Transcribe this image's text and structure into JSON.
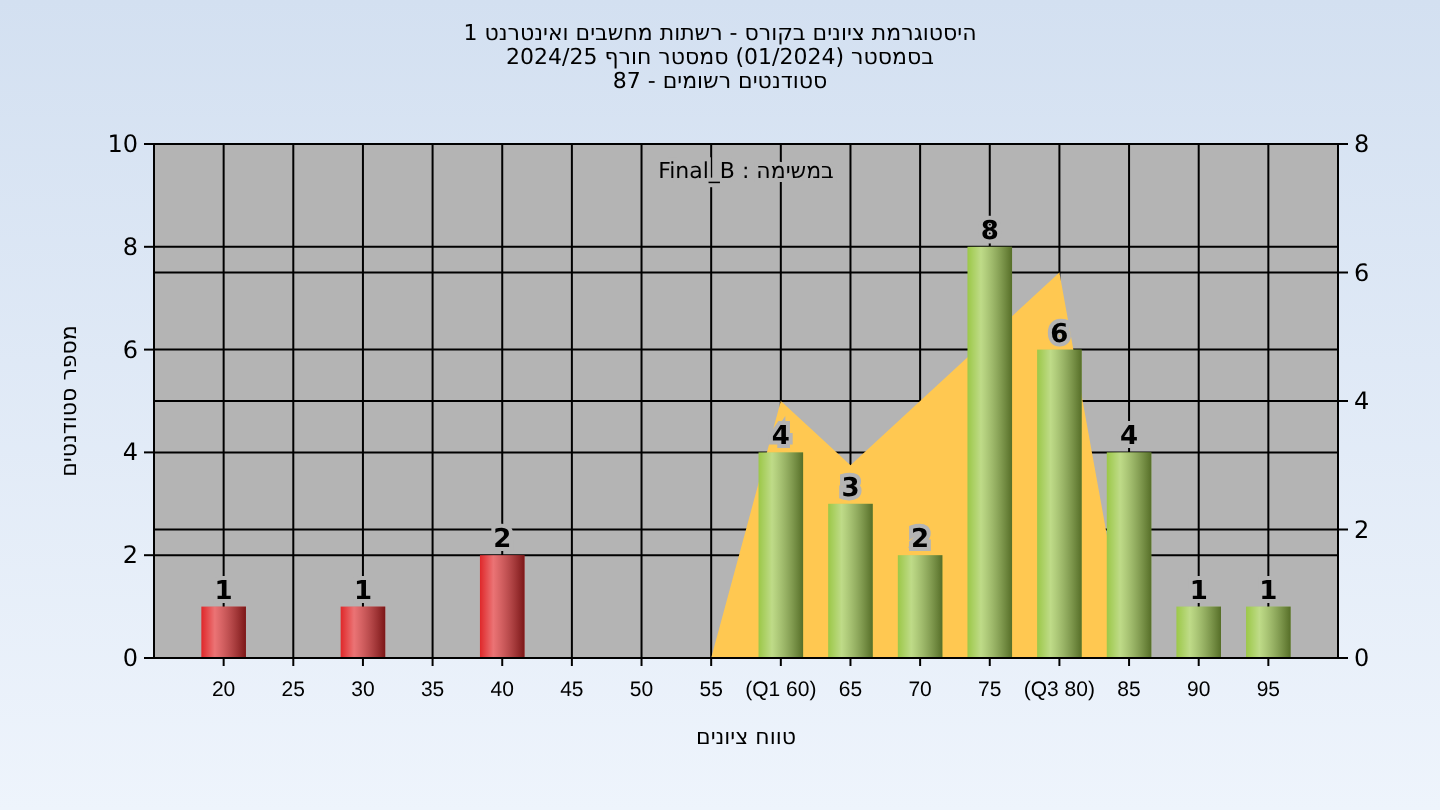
{
  "chart_data": {
    "type": "bar",
    "title": "היסטוגרמת ציונים בקורס - רשתות מחשבים ואינטרנט 1",
    "subtitle": "בסמסטר  (01/2024)  סמסטר חורף 2024/25\nסטודנטים רשומים - 87",
    "xlabel": "טווח ציונים",
    "ylabel": "מספר סטודנטים",
    "annotations": [
      "במשימה : Final_B"
    ],
    "xlim": [
      15,
      100
    ],
    "xticks": [
      20,
      25,
      30,
      35,
      40,
      45,
      50,
      55,
      {
        "value": 60,
        "label": "(Q1 60)"
      },
      65,
      70,
      75,
      {
        "value": 80,
        "label": "(Q3 80)"
      },
      85,
      90,
      95
    ],
    "ylim": [
      0,
      10
    ],
    "yticks": [
      0,
      2,
      4,
      6,
      8,
      10
    ],
    "y2lim": [
      0,
      8
    ],
    "y2ticks": [
      0,
      2,
      4,
      6,
      8
    ],
    "grid": true,
    "series": [
      {
        "type": "area",
        "axis": "y2",
        "color": "#ffc851",
        "x": [
          55,
          60,
          65,
          70,
          75,
          80,
          85
        ],
        "values": [
          0,
          4,
          3,
          4,
          null,
          6,
          0
        ]
      },
      {
        "type": "bar",
        "color": "#e0282a",
        "x": [
          20,
          30,
          40
        ],
        "values": [
          1,
          1,
          2
        ],
        "value_labels": [
          "1",
          "1",
          "2"
        ]
      },
      {
        "type": "bar",
        "color": "#9cc848",
        "x": [
          60,
          65,
          70,
          75,
          80,
          85,
          90,
          95
        ],
        "values": [
          4,
          3,
          2,
          8,
          6,
          4,
          1,
          1
        ],
        "value_labels": [
          "4",
          "3",
          "2",
          "8",
          "6",
          "4",
          "1",
          "1"
        ]
      }
    ]
  }
}
